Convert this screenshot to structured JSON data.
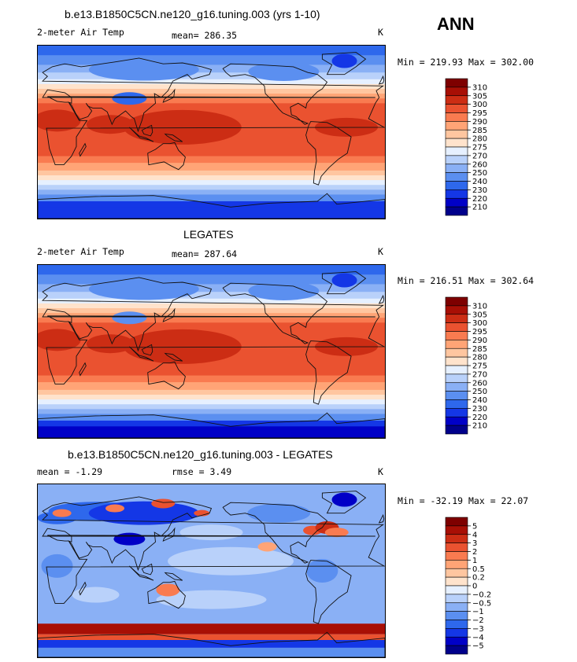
{
  "season": "ANN",
  "colors": [
    "#00008b",
    "#0000c7",
    "#1437e6",
    "#2e68ec",
    "#5b8ff0",
    "#8ab0f5",
    "#b9d1fa",
    "#e6f0ff",
    "#ffe3cc",
    "#ffc6a0",
    "#ffa476",
    "#f97b50",
    "#ea5230",
    "#cc2d14",
    "#a80f05",
    "#7e0000"
  ],
  "panels": [
    {
      "title": "b.e13.B1850C5CN.ne120_g16.tuning.003 (yrs 1-10)",
      "left_label": "2-meter Air Temp",
      "mean_label": "mean= 286.35",
      "units": "K",
      "minmax": "Min = 219.93 Max = 302.00"
    },
    {
      "title": "LEGATES",
      "left_label": "2-meter Air Temp",
      "mean_label": "mean= 287.64",
      "units": "K",
      "minmax": "Min = 216.51 Max = 302.64"
    },
    {
      "title": "b.e13.B1850C5CN.ne120_g16.tuning.003 - LEGATES",
      "left_label": "mean =   -1.29",
      "mean_label": "rmse =    3.49",
      "units": "K",
      "minmax": "Min = -32.19 Max =  22.07"
    }
  ],
  "chart_data": [
    {
      "type": "heatmap",
      "title": "b.e13.B1850C5CN.ne120_g16.tuning.003 (yrs 1-10)",
      "variable": "2-meter Air Temp",
      "units": "K",
      "mean": 286.35,
      "min": 219.93,
      "max": 302.0,
      "colorbar_levels": [
        "310",
        "305",
        "300",
        "295",
        "290",
        "285",
        "280",
        "275",
        "270",
        "260",
        "250",
        "240",
        "230",
        "220",
        "210"
      ]
    },
    {
      "type": "heatmap",
      "title": "LEGATES",
      "variable": "2-meter Air Temp",
      "units": "K",
      "mean": 287.64,
      "min": 216.51,
      "max": 302.64,
      "colorbar_levels": [
        "310",
        "305",
        "300",
        "295",
        "290",
        "285",
        "280",
        "275",
        "270",
        "260",
        "250",
        "240",
        "230",
        "220",
        "210"
      ]
    },
    {
      "type": "heatmap",
      "title": "b.e13.B1850C5CN.ne120_g16.tuning.003 - LEGATES",
      "units": "K",
      "mean": -1.29,
      "rmse": 3.49,
      "min": -32.19,
      "max": 22.07,
      "colorbar_levels": [
        "5",
        "4",
        "3",
        "2",
        "1",
        "0.5",
        "0.2",
        "0",
        "−0.2",
        "−0.5",
        "−1",
        "−2",
        "−3",
        "−4",
        "−5"
      ]
    }
  ]
}
